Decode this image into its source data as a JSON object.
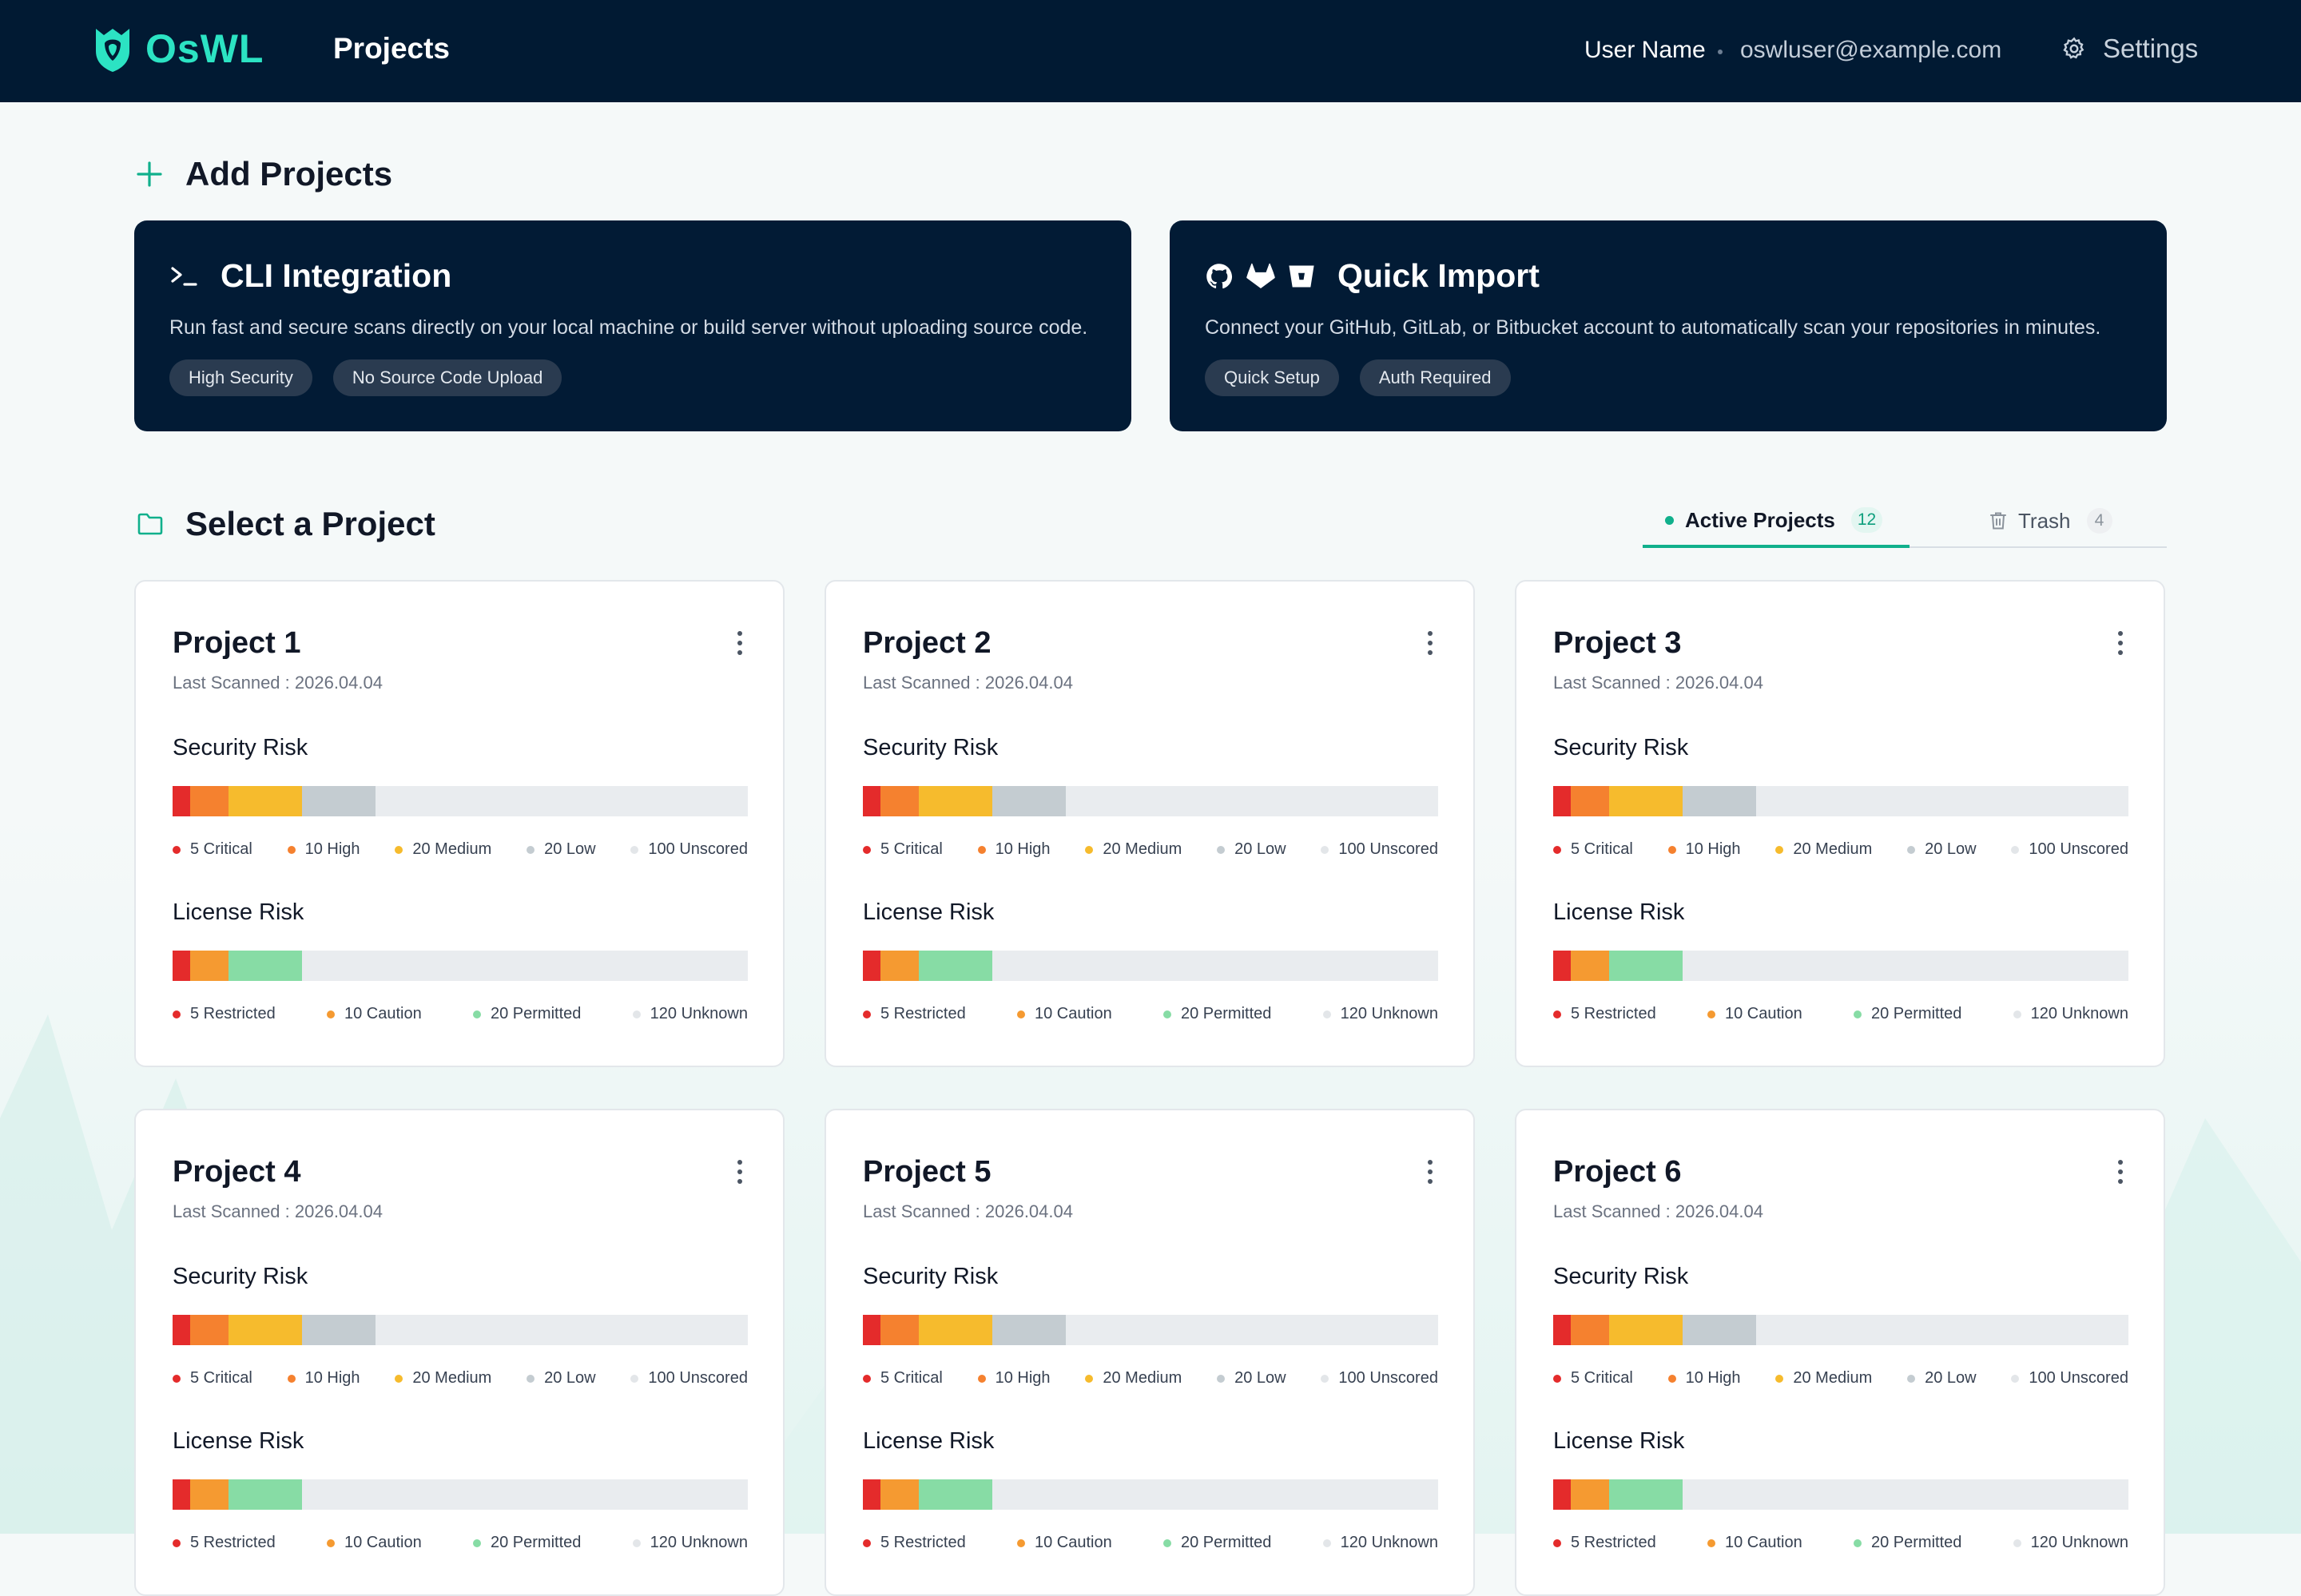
{
  "header": {
    "logo_text": "OsWL",
    "nav_title": "Projects",
    "user_name": "User Name",
    "user_email": "oswluser@example.com",
    "settings_label": "Settings"
  },
  "add_projects": {
    "title": "Add Projects",
    "cards": [
      {
        "title": "CLI Integration",
        "icon": "terminal-icon",
        "description": "Run fast and secure scans directly on your local machine or build server without uploading source code.",
        "tags": [
          "High Security",
          "No Source Code Upload"
        ]
      },
      {
        "title": "Quick Import",
        "icons": [
          "github-icon",
          "gitlab-icon",
          "bitbucket-icon"
        ],
        "description": "Connect your GitHub, GitLab, or Bitbucket account to automatically scan your repositories in minutes.",
        "tags": [
          "Quick Setup",
          "Auth Required"
        ]
      }
    ]
  },
  "select_project": {
    "title": "Select a Project",
    "tabs": [
      {
        "label": "Active Projects",
        "count": "12"
      },
      {
        "label": "Trash",
        "count": "4"
      }
    ]
  },
  "labels": {
    "security_risk": "Security Risk",
    "license_risk": "License Risk"
  },
  "colors": {
    "critical": "#e42b2b",
    "high": "#f5812f",
    "medium": "#f6bb2d",
    "low": "#c4ccd1",
    "unscored": "#eef0f2",
    "restricted": "#e42b2b",
    "caution": "#f59a31",
    "permitted": "#87dca5",
    "unknown": "#eef0f2",
    "accent": "#10b08c",
    "header_bg": "#011a33"
  },
  "projects": [
    {
      "name": "Project 1",
      "last_scanned": "Last Scanned : 2026.04.04",
      "security": {
        "critical": "5 Critical",
        "high": "10 High",
        "medium": "20 Medium",
        "low": "20 Low",
        "unscored": "100 Unscored"
      },
      "license": {
        "restricted": "5 Restricted",
        "caution": "10 Caution",
        "permitted": "20 Permitted",
        "unknown": "120 Unknown"
      }
    },
    {
      "name": "Project 2",
      "last_scanned": "Last Scanned : 2026.04.04",
      "security": {
        "critical": "5 Critical",
        "high": "10 High",
        "medium": "20 Medium",
        "low": "20 Low",
        "unscored": "100 Unscored"
      },
      "license": {
        "restricted": "5 Restricted",
        "caution": "10 Caution",
        "permitted": "20 Permitted",
        "unknown": "120 Unknown"
      }
    },
    {
      "name": "Project 3",
      "last_scanned": "Last Scanned : 2026.04.04",
      "security": {
        "critical": "5 Critical",
        "high": "10 High",
        "medium": "20 Medium",
        "low": "20 Low",
        "unscored": "100 Unscored"
      },
      "license": {
        "restricted": "5 Restricted",
        "caution": "10 Caution",
        "permitted": "20 Permitted",
        "unknown": "120 Unknown"
      }
    },
    {
      "name": "Project 4",
      "last_scanned": "Last Scanned : 2026.04.04",
      "security": {
        "critical": "5 Critical",
        "high": "10 High",
        "medium": "20 Medium",
        "low": "20 Low",
        "unscored": "100 Unscored"
      },
      "license": {
        "restricted": "5 Restricted",
        "caution": "10 Caution",
        "permitted": "20 Permitted",
        "unknown": "120 Unknown"
      }
    },
    {
      "name": "Project 5",
      "last_scanned": "Last Scanned : 2026.04.04",
      "security": {
        "critical": "5 Critical",
        "high": "10 High",
        "medium": "20 Medium",
        "low": "20 Low",
        "unscored": "100 Unscored"
      },
      "license": {
        "restricted": "5 Restricted",
        "caution": "10 Caution",
        "permitted": "20 Permitted",
        "unknown": "120 Unknown"
      }
    },
    {
      "name": "Project 6",
      "last_scanned": "Last Scanned : 2026.04.04",
      "security": {
        "critical": "5 Critical",
        "high": "10 High",
        "medium": "20 Medium",
        "low": "20 Low",
        "unscored": "100 Unscored"
      },
      "license": {
        "restricted": "5 Restricted",
        "caution": "10 Caution",
        "permitted": "20 Permitted",
        "unknown": "120 Unknown"
      }
    }
  ]
}
